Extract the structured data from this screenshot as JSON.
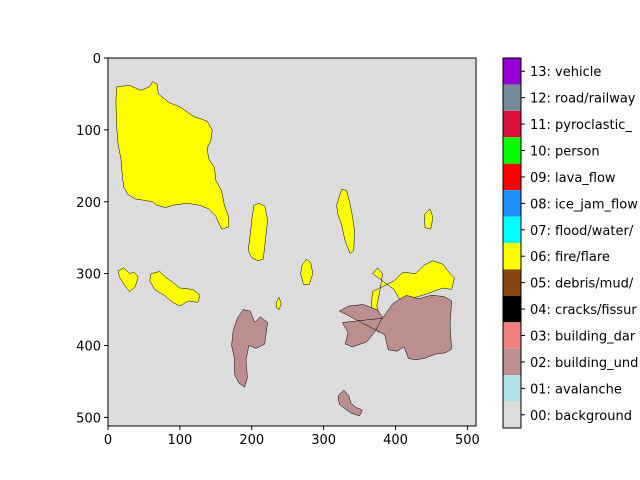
{
  "chart_data": {
    "type": "heatmap",
    "title": "",
    "xlabel": "",
    "ylabel": "",
    "xlim": [
      0,
      512
    ],
    "ylim": [
      512,
      0
    ],
    "x_ticks": [
      0,
      100,
      200,
      300,
      400,
      500
    ],
    "y_ticks": [
      0,
      100,
      200,
      300,
      400,
      500
    ],
    "x_tick_labels": [
      "0",
      "100",
      "200",
      "300",
      "400",
      "500"
    ],
    "y_tick_labels": [
      "0",
      "100",
      "200",
      "300",
      "400",
      "500"
    ],
    "background_color": "#dcdcdc",
    "legend": {
      "placement": "right colorbar",
      "classes": [
        {
          "label": "13: vehicle",
          "color": "#9400d3"
        },
        {
          "label": "12: road/railway",
          "color": "#778899"
        },
        {
          "label": "11: pyroclastic_",
          "color": "#dc143c"
        },
        {
          "label": "10: person",
          "color": "#00ff00"
        },
        {
          "label": "09: lava_flow",
          "color": "#ff0000"
        },
        {
          "label": "08: ice_jam_flow",
          "color": "#1e90ff"
        },
        {
          "label": "07: flood/water/",
          "color": "#00ffff"
        },
        {
          "label": "06: fire/flare",
          "color": "#ffff00"
        },
        {
          "label": "05: debris/mud/",
          "color": "#8b4513"
        },
        {
          "label": "04: cracks/fissur",
          "color": "#000000"
        },
        {
          "label": "03: building_dar",
          "color": "#f08080"
        },
        {
          "label": "02: building_und",
          "color": "#bc8f8f"
        },
        {
          "label": "01: avalanche",
          "color": "#b0e0e6"
        },
        {
          "label": "00: background",
          "color": "#dcdcdc"
        }
      ]
    },
    "regions": [
      {
        "name": "fire-region-large",
        "class": "06: fire/flare",
        "color": "#ffff00",
        "points": [
          [
            12,
            40
          ],
          [
            30,
            38
          ],
          [
            45,
            45
          ],
          [
            58,
            40
          ],
          [
            62,
            33
          ],
          [
            68,
            36
          ],
          [
            70,
            50
          ],
          [
            85,
            62
          ],
          [
            100,
            68
          ],
          [
            120,
            82
          ],
          [
            130,
            85
          ],
          [
            138,
            88
          ],
          [
            145,
            100
          ],
          [
            143,
            115
          ],
          [
            138,
            125
          ],
          [
            140,
            140
          ],
          [
            148,
            152
          ],
          [
            150,
            170
          ],
          [
            158,
            185
          ],
          [
            162,
            205
          ],
          [
            168,
            222
          ],
          [
            168,
            235
          ],
          [
            158,
            238
          ],
          [
            150,
            220
          ],
          [
            140,
            210
          ],
          [
            128,
            205
          ],
          [
            110,
            202
          ],
          [
            90,
            205
          ],
          [
            80,
            208
          ],
          [
            68,
            205
          ],
          [
            62,
            200
          ],
          [
            50,
            198
          ],
          [
            38,
            196
          ],
          [
            28,
            190
          ],
          [
            22,
            180
          ],
          [
            20,
            165
          ],
          [
            18,
            140
          ],
          [
            14,
            120
          ],
          [
            12,
            95
          ],
          [
            11,
            60
          ]
        ]
      },
      {
        "name": "fire-region-center",
        "class": "06: fire/flare",
        "color": "#ffff00",
        "points": [
          [
            203,
            205
          ],
          [
            210,
            202
          ],
          [
            218,
            206
          ],
          [
            222,
            225
          ],
          [
            220,
            245
          ],
          [
            218,
            262
          ],
          [
            216,
            280
          ],
          [
            208,
            282
          ],
          [
            200,
            278
          ],
          [
            195,
            268
          ],
          [
            198,
            245
          ],
          [
            200,
            225
          ]
        ]
      },
      {
        "name": "fire-region-right-center",
        "class": "06: fire/flare",
        "color": "#ffff00",
        "points": [
          [
            318,
            205
          ],
          [
            325,
            183
          ],
          [
            332,
            184
          ],
          [
            336,
            200
          ],
          [
            340,
            220
          ],
          [
            343,
            240
          ],
          [
            342,
            268
          ],
          [
            337,
            272
          ],
          [
            330,
            255
          ],
          [
            325,
            232
          ],
          [
            320,
            218
          ]
        ]
      },
      {
        "name": "fire-region-small-left",
        "class": "06: fire/flare",
        "color": "#ffff00",
        "points": [
          [
            14,
            296
          ],
          [
            22,
            292
          ],
          [
            30,
            300
          ],
          [
            36,
            298
          ],
          [
            42,
            305
          ],
          [
            38,
            318
          ],
          [
            30,
            325
          ],
          [
            22,
            315
          ],
          [
            16,
            305
          ]
        ]
      },
      {
        "name": "fire-region-mid-left",
        "class": "06: fire/flare",
        "color": "#ffff00",
        "points": [
          [
            60,
            300
          ],
          [
            72,
            297
          ],
          [
            80,
            305
          ],
          [
            90,
            312
          ],
          [
            100,
            320
          ],
          [
            118,
            322
          ],
          [
            128,
            330
          ],
          [
            125,
            340
          ],
          [
            112,
            338
          ],
          [
            100,
            345
          ],
          [
            90,
            340
          ],
          [
            78,
            330
          ],
          [
            65,
            322
          ],
          [
            58,
            310
          ]
        ]
      },
      {
        "name": "fire-region-stub",
        "class": "06: fire/flare",
        "color": "#ffff00",
        "points": [
          [
            270,
            288
          ],
          [
            276,
            280
          ],
          [
            282,
            285
          ],
          [
            285,
            300
          ],
          [
            280,
            315
          ],
          [
            272,
            315
          ],
          [
            268,
            300
          ]
        ]
      },
      {
        "name": "fire-region-dot",
        "class": "06: fire/flare",
        "color": "#ffff00",
        "points": [
          [
            234,
            340
          ],
          [
            238,
            333
          ],
          [
            241,
            342
          ],
          [
            238,
            350
          ],
          [
            234,
            347
          ]
        ]
      },
      {
        "name": "fire-region-tiny-right",
        "class": "06: fire/flare",
        "color": "#ffff00",
        "points": [
          [
            440,
            218
          ],
          [
            448,
            210
          ],
          [
            452,
            222
          ],
          [
            449,
            238
          ],
          [
            441,
            236
          ]
        ]
      },
      {
        "name": "fire-region-right-cluster",
        "class": "06: fire/flare",
        "color": "#ffff00",
        "points": [
          [
            368,
            300
          ],
          [
            375,
            292
          ],
          [
            382,
            300
          ],
          [
            378,
            325
          ],
          [
            374,
            345
          ],
          [
            380,
            365
          ],
          [
            376,
            382
          ],
          [
            370,
            372
          ],
          [
            366,
            350
          ],
          [
            368,
            325
          ],
          [
            398,
            310
          ],
          [
            410,
            298
          ],
          [
            428,
            300
          ],
          [
            440,
            288
          ],
          [
            452,
            282
          ],
          [
            466,
            287
          ],
          [
            476,
            300
          ],
          [
            482,
            306
          ],
          [
            478,
            322
          ],
          [
            466,
            320
          ],
          [
            452,
            325
          ],
          [
            438,
            330
          ],
          [
            420,
            335
          ],
          [
            405,
            335
          ],
          [
            398,
            322
          ]
        ]
      },
      {
        "name": "building-region-left",
        "class": "02: building_und",
        "color": "#bc8f8f",
        "points": [
          [
            180,
            362
          ],
          [
            188,
            350
          ],
          [
            198,
            352
          ],
          [
            204,
            368
          ],
          [
            212,
            360
          ],
          [
            222,
            368
          ],
          [
            218,
            398
          ],
          [
            206,
            404
          ],
          [
            196,
            400
          ],
          [
            192,
            420
          ],
          [
            194,
            445
          ],
          [
            190,
            458
          ],
          [
            182,
            452
          ],
          [
            176,
            440
          ],
          [
            176,
            418
          ],
          [
            172,
            400
          ],
          [
            174,
            380
          ]
        ]
      },
      {
        "name": "building-region-right",
        "class": "02: building_und",
        "color": "#bc8f8f",
        "points": [
          [
            322,
            352
          ],
          [
            335,
            345
          ],
          [
            355,
            343
          ],
          [
            374,
            350
          ],
          [
            382,
            360
          ],
          [
            372,
            380
          ],
          [
            360,
            395
          ],
          [
            340,
            402
          ],
          [
            330,
            398
          ],
          [
            334,
            382
          ],
          [
            326,
            368
          ],
          [
            382,
            362
          ],
          [
            396,
            342
          ],
          [
            415,
            330
          ],
          [
            432,
            335
          ],
          [
            450,
            330
          ],
          [
            468,
            332
          ],
          [
            478,
            338
          ],
          [
            476,
            372
          ],
          [
            478,
            405
          ],
          [
            470,
            410
          ],
          [
            456,
            412
          ],
          [
            440,
            418
          ],
          [
            428,
            420
          ],
          [
            418,
            418
          ],
          [
            412,
            402
          ],
          [
            402,
            408
          ],
          [
            390,
            406
          ],
          [
            385,
            385
          ]
        ]
      },
      {
        "name": "building-region-bottom",
        "class": "02: building_und",
        "color": "#bc8f8f",
        "points": [
          [
            320,
            470
          ],
          [
            328,
            462
          ],
          [
            335,
            470
          ],
          [
            338,
            480
          ],
          [
            345,
            486
          ],
          [
            354,
            490
          ],
          [
            350,
            498
          ],
          [
            338,
            494
          ],
          [
            330,
            488
          ],
          [
            322,
            482
          ]
        ]
      }
    ]
  }
}
